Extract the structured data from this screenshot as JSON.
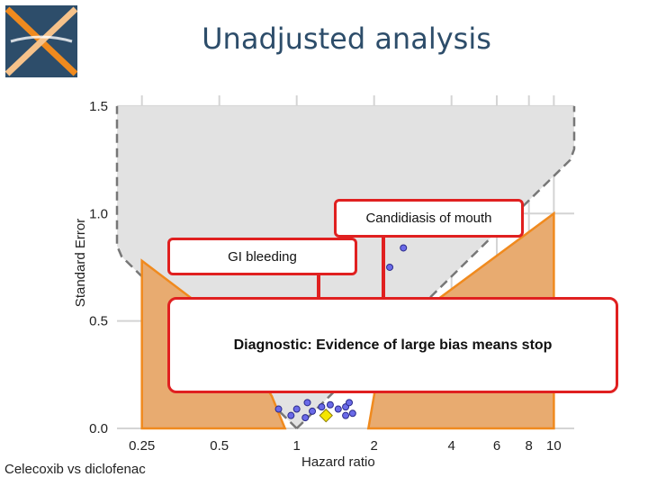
{
  "slide": {
    "title": "Unadjusted analysis",
    "footer_label": "Celecoxib vs diclofenac"
  },
  "callouts": {
    "candidiasis": "Candidiasis of mouth",
    "gi_bleeding": "GI bleeding",
    "diagnostic": "Diagnostic: Evidence of large bias means stop"
  },
  "colors": {
    "title": "#2d4d6a",
    "callout_border": "#e02020",
    "region_fill": "#e8ab70",
    "region_stroke": "#f08a1e",
    "funnel_fill": "#e2e2e2",
    "point": "#6a6ae8",
    "highlight_point": "#f5e600"
  },
  "chart_data": {
    "type": "scatter",
    "xlabel": "Hazard ratio",
    "ylabel": "Standard Error",
    "x_scale": "log",
    "x_ticks": [
      0.25,
      0.5,
      1,
      2,
      4,
      6,
      8,
      10
    ],
    "x_tick_labels": [
      "0.25",
      "0.5",
      "1",
      "2",
      "4",
      "6",
      "8",
      "10"
    ],
    "xlim": [
      0.2,
      12
    ],
    "y_ticks": [
      0.0,
      0.5,
      1.0,
      1.5
    ],
    "y_tick_labels": [
      "0.0",
      "0.5",
      "1.0",
      "1.5"
    ],
    "ylim": [
      0,
      1.55
    ],
    "grid": true,
    "points": [
      {
        "x": 2.6,
        "y": 0.84
      },
      {
        "x": 2.3,
        "y": 0.75
      },
      {
        "x": 0.85,
        "y": 0.09
      },
      {
        "x": 1.0,
        "y": 0.09
      },
      {
        "x": 1.15,
        "y": 0.08
      },
      {
        "x": 1.25,
        "y": 0.1
      },
      {
        "x": 1.45,
        "y": 0.09
      },
      {
        "x": 1.55,
        "y": 0.1
      },
      {
        "x": 1.65,
        "y": 0.07
      },
      {
        "x": 1.55,
        "y": 0.06
      },
      {
        "x": 1.08,
        "y": 0.05
      },
      {
        "x": 0.95,
        "y": 0.06
      },
      {
        "x": 1.35,
        "y": 0.11
      },
      {
        "x": 1.6,
        "y": 0.12
      },
      {
        "x": 1.1,
        "y": 0.12
      }
    ],
    "highlight_point": {
      "x": 1.3,
      "y": 0.06
    }
  }
}
